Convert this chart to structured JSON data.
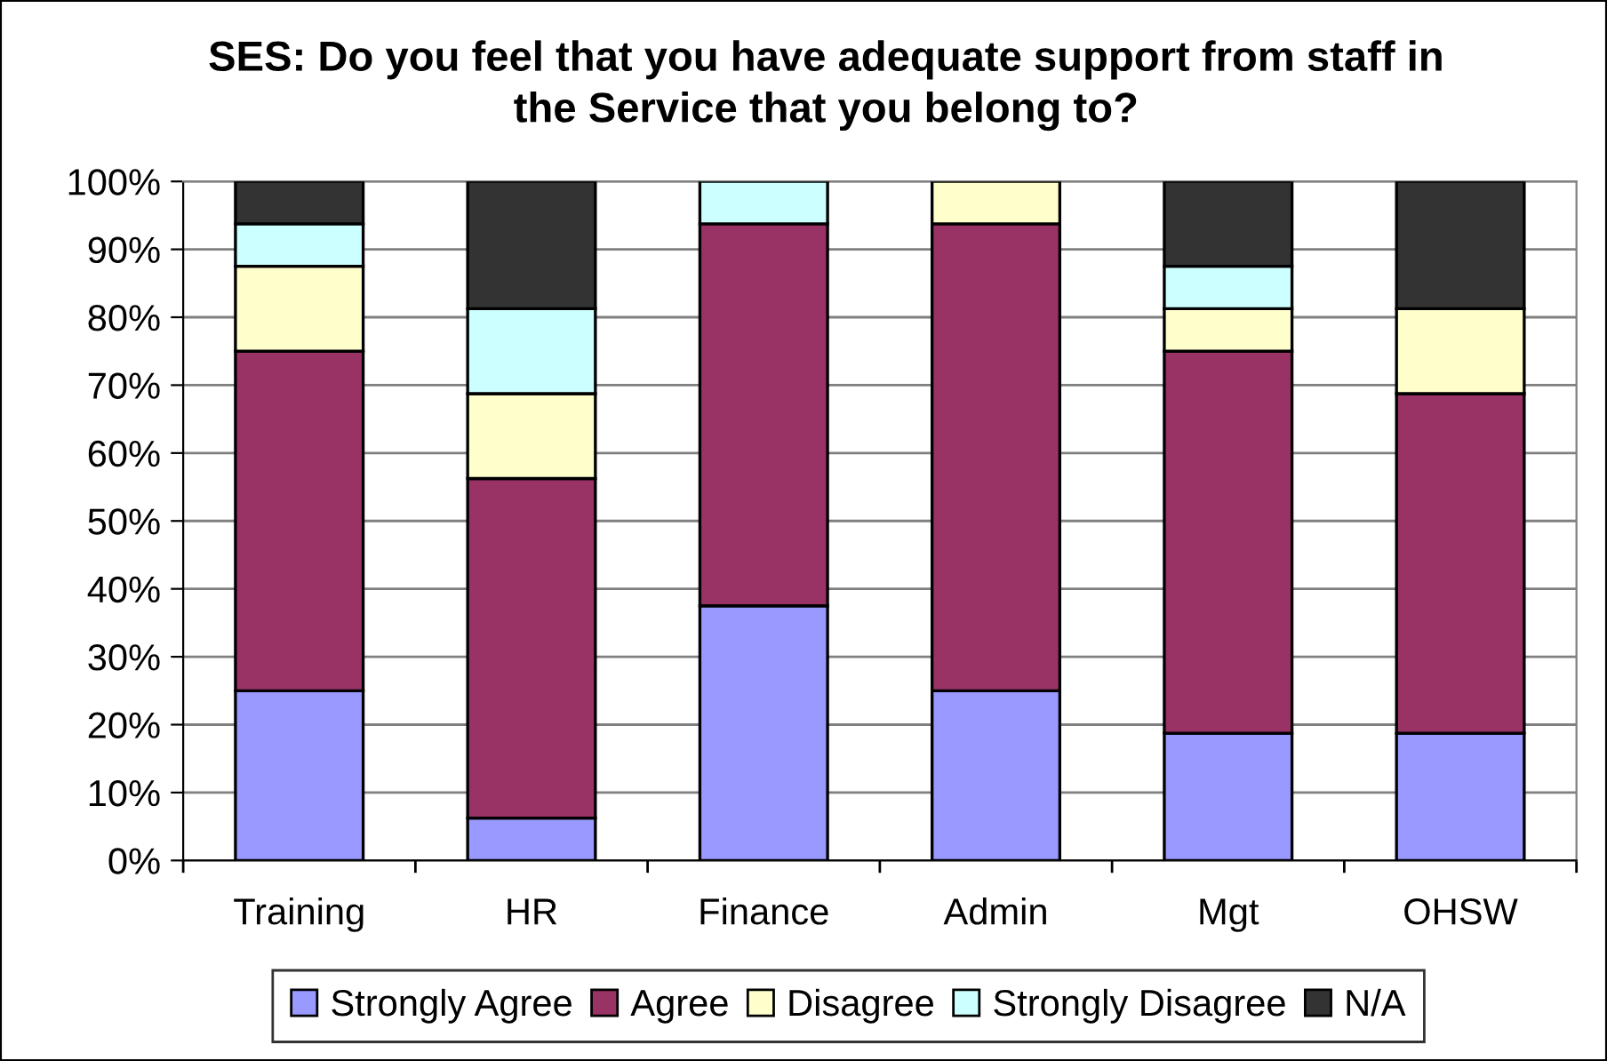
{
  "chart_data": {
    "type": "bar",
    "stacked": true,
    "title": "SES: Do you feel that you have adequate support from staff in\nthe Service that you belong to?",
    "categories": [
      "Training",
      "HR",
      "Finance",
      "Admin",
      "Mgt",
      "OHSW"
    ],
    "series": [
      {
        "name": "Strongly Agree",
        "color": "#9999ff",
        "values": [
          25,
          6.25,
          37.5,
          25,
          18.75,
          18.75
        ]
      },
      {
        "name": "Agree",
        "color": "#993366",
        "values": [
          50,
          50,
          56.25,
          68.75,
          56.25,
          50
        ]
      },
      {
        "name": "Disagree",
        "color": "#ffffcc",
        "values": [
          12.5,
          12.5,
          0,
          6.25,
          6.25,
          12.5
        ]
      },
      {
        "name": "Strongly Disagree",
        "color": "#ccffff",
        "values": [
          6.25,
          12.5,
          6.25,
          0,
          6.25,
          0
        ]
      },
      {
        "name": "N/A",
        "color": "#333333",
        "values": [
          6.25,
          18.75,
          0,
          0,
          12.5,
          18.75
        ]
      }
    ],
    "ylim": [
      0,
      100
    ],
    "yticks": [
      {
        "value": 0,
        "label": "0%"
      },
      {
        "value": 10,
        "label": "10%"
      },
      {
        "value": 20,
        "label": "20%"
      },
      {
        "value": 30,
        "label": "30%"
      },
      {
        "value": 40,
        "label": "40%"
      },
      {
        "value": 50,
        "label": "50%"
      },
      {
        "value": 60,
        "label": "60%"
      },
      {
        "value": 70,
        "label": "70%"
      },
      {
        "value": 80,
        "label": "80%"
      },
      {
        "value": 90,
        "label": "90%"
      },
      {
        "value": 100,
        "label": "100%"
      }
    ],
    "grid": "y",
    "legend": "bottom"
  }
}
